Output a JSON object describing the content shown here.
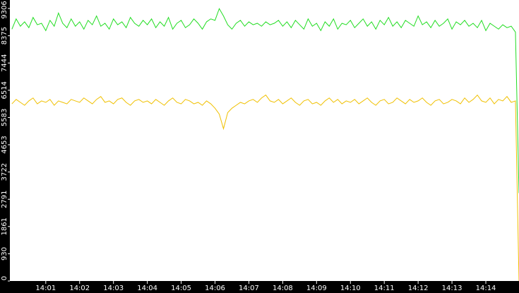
{
  "chart_data": {
    "type": "line",
    "x": [
      840,
      840.125,
      840.25,
      840.375,
      840.5,
      840.625,
      840.75,
      840.875,
      841,
      841.125,
      841.25,
      841.375,
      841.5,
      841.625,
      841.75,
      841.875,
      842,
      842.125,
      842.25,
      842.375,
      842.5,
      842.625,
      842.75,
      842.875,
      843,
      843.125,
      843.25,
      843.375,
      843.5,
      843.625,
      843.75,
      843.875,
      844,
      844.125,
      844.25,
      844.375,
      844.5,
      844.625,
      844.75,
      844.875,
      845,
      845.125,
      845.25,
      845.375,
      845.5,
      845.625,
      845.75,
      845.875,
      846,
      846.125,
      846.25,
      846.375,
      846.5,
      846.625,
      846.75,
      846.875,
      847,
      847.125,
      847.25,
      847.375,
      847.5,
      847.625,
      847.75,
      847.875,
      848,
      848.125,
      848.25,
      848.375,
      848.5,
      848.625,
      848.75,
      848.875,
      849,
      849.125,
      849.25,
      849.375,
      849.5,
      849.625,
      849.75,
      849.875,
      850,
      850.125,
      850.25,
      850.375,
      850.5,
      850.625,
      850.75,
      850.875,
      851,
      851.125,
      851.25,
      851.375,
      851.5,
      851.625,
      851.75,
      851.875,
      852,
      852.125,
      852.25,
      852.375,
      852.5,
      852.625,
      852.75,
      852.875,
      853,
      853.125,
      853.25,
      853.375,
      853.5,
      853.625,
      853.75,
      853.875,
      854,
      854.125,
      854.25,
      854.375,
      854.5,
      854.625,
      854.75,
      854.875,
      854.98
    ],
    "series": [
      {
        "color": "#22dd22",
        "values": [
          8600,
          8950,
          8700,
          8850,
          8650,
          9000,
          8750,
          8800,
          8550,
          8900,
          8700,
          9150,
          8800,
          8650,
          8950,
          8700,
          8850,
          8600,
          8900,
          8750,
          9050,
          8700,
          8800,
          8600,
          8950,
          8750,
          8850,
          8650,
          9000,
          8800,
          8700,
          8900,
          8750,
          8950,
          8650,
          8850,
          8700,
          9000,
          8600,
          8800,
          8900,
          8650,
          8750,
          8950,
          8800,
          8600,
          8850,
          8950,
          8900,
          9300,
          9050,
          8750,
          8600,
          8800,
          8900,
          8700,
          8850,
          8750,
          8800,
          8700,
          8850,
          8750,
          8800,
          8900,
          8700,
          8850,
          8650,
          8900,
          8750,
          8600,
          8950,
          8700,
          8800,
          8550,
          8850,
          8700,
          8950,
          8600,
          8800,
          8750,
          8900,
          8650,
          8800,
          8950,
          8700,
          8850,
          8600,
          8900,
          8750,
          9000,
          8700,
          8850,
          8650,
          8900,
          8800,
          8700,
          9050,
          8750,
          8850,
          8650,
          8900,
          8700,
          8800,
          8950,
          8600,
          8850,
          8750,
          8900,
          8700,
          8800,
          8650,
          8900,
          8550,
          8800,
          8700,
          8600,
          8750,
          8650,
          8700,
          8500,
          3000
        ]
      },
      {
        "color": "#f0c000",
        "values": [
          6050,
          6200,
          6100,
          6000,
          6150,
          6250,
          6050,
          6150,
          6100,
          6200,
          6000,
          6150,
          6100,
          6050,
          6200,
          6150,
          6100,
          6250,
          6150,
          6050,
          6200,
          6300,
          6100,
          6150,
          6050,
          6200,
          6250,
          6100,
          6000,
          6150,
          6200,
          6100,
          6150,
          6050,
          6200,
          6100,
          6000,
          6150,
          6250,
          6100,
          6050,
          6200,
          6150,
          6050,
          6100,
          6000,
          6150,
          6050,
          5900,
          5700,
          5200,
          5750,
          5900,
          6000,
          6100,
          6050,
          6150,
          6200,
          6100,
          6250,
          6350,
          6150,
          6100,
          6200,
          6050,
          6150,
          6250,
          6100,
          6000,
          6150,
          6200,
          6050,
          6100,
          6000,
          6150,
          6250,
          6100,
          6200,
          6050,
          6150,
          6100,
          6200,
          6050,
          6150,
          6250,
          6100,
          6000,
          6150,
          6200,
          6050,
          6100,
          6250,
          6150,
          6050,
          6200,
          6100,
          6150,
          6250,
          6100,
          6000,
          6150,
          6200,
          6050,
          6100,
          6200,
          6150,
          6050,
          6250,
          6100,
          6200,
          6350,
          6150,
          6100,
          6250,
          6050,
          6200,
          6150,
          6300,
          6100,
          6150,
          0
        ]
      }
    ],
    "xlim": [
      839.94,
      854.98
    ],
    "xticks": [
      {
        "value": 841,
        "label": "14:01"
      },
      {
        "value": 842,
        "label": "14:02"
      },
      {
        "value": 843,
        "label": "14:03"
      },
      {
        "value": 844,
        "label": "14:04"
      },
      {
        "value": 845,
        "label": "14:05"
      },
      {
        "value": 846,
        "label": "14:06"
      },
      {
        "value": 847,
        "label": "14:07"
      },
      {
        "value": 848,
        "label": "14:08"
      },
      {
        "value": 849,
        "label": "14:09"
      },
      {
        "value": 850,
        "label": "14:10"
      },
      {
        "value": 851,
        "label": "14:11"
      },
      {
        "value": 852,
        "label": "14:12"
      },
      {
        "value": 853,
        "label": "14:13"
      },
      {
        "value": 854,
        "label": "14:14"
      }
    ],
    "ylim": [
      0,
      9306
    ],
    "yticks": [
      0,
      930,
      1861,
      2791,
      3722,
      4653,
      5583,
      6514,
      7444,
      8375,
      9306
    ]
  }
}
